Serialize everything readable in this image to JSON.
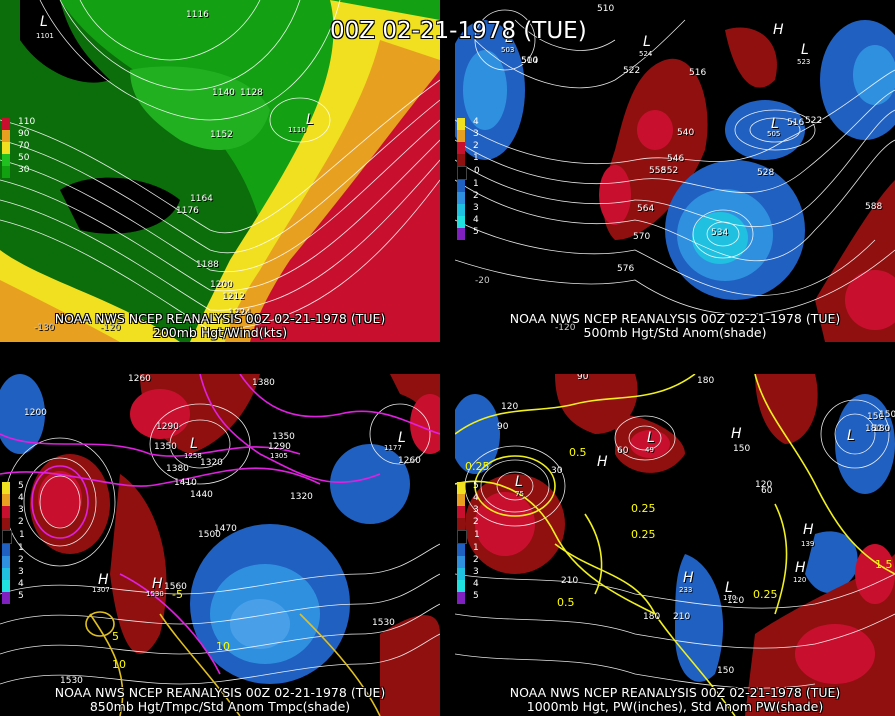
{
  "title": "00Z 02-21-1978 (TUE)",
  "panels": [
    {
      "caption_line1": "NOAA NWS NCEP REANALYSIS 00Z 02-21-1978 (TUE)",
      "caption_line2": "200mb Hgt/Wind(kts)",
      "colorbar": [
        {
          "label": "110",
          "color": "#c8102e"
        },
        {
          "label": "90",
          "color": "#e8a020"
        },
        {
          "label": "70",
          "color": "#f0e020"
        },
        {
          "label": "50",
          "color": "#20c020"
        },
        {
          "label": "30",
          "color": "#10a010"
        }
      ],
      "contour_labels": [
        "1116",
        "1140",
        "1128",
        "1152",
        "1164",
        "1176",
        "1188",
        "1200",
        "1212",
        "1224"
      ],
      "low_labels": [
        "L",
        "L"
      ],
      "low_values": [
        "1101",
        "1110"
      ],
      "lon_labels": [
        "-130",
        "-120"
      ]
    },
    {
      "caption_line1": "NOAA NWS NCEP REANALYSIS 00Z 02-21-1978 (TUE)",
      "caption_line2": "500mb Hgt/Std Anom(shade)",
      "colorbar": [
        {
          "label": "4",
          "color": "#f0e020"
        },
        {
          "label": "3",
          "color": "#e8a020"
        },
        {
          "label": "2",
          "color": "#c8102e"
        },
        {
          "label": "1",
          "color": "#901010"
        },
        {
          "label": "0",
          "color": "#000000"
        },
        {
          "label": "1",
          "color": "#2060c0"
        },
        {
          "label": "2",
          "color": "#3090e0"
        },
        {
          "label": "3",
          "color": "#20c0e0"
        },
        {
          "label": "4",
          "color": "#20e0e0"
        },
        {
          "label": "5",
          "color": "#8020c0"
        }
      ],
      "contour_labels": [
        "510",
        "522",
        "504",
        "516",
        "540",
        "546",
        "552",
        "558",
        "564",
        "570",
        "576",
        "528",
        "534",
        "516",
        "522",
        "588",
        "510"
      ],
      "low_labels": [
        "L",
        "L",
        "L",
        "L",
        "H",
        "L"
      ],
      "low_values": [
        "503",
        "524",
        "505",
        "523"
      ],
      "lon_labels": [
        "-20",
        "-120"
      ]
    },
    {
      "caption_line1": "NOAA NWS NCEP REANALYSIS 00Z 02-21-1978 (TUE)",
      "caption_line2": "850mb Hgt/Tmpc/Std Anom Tmpc(shade)",
      "colorbar": [
        {
          "label": "5",
          "color": "#f0e020"
        },
        {
          "label": "4",
          "color": "#e8a020"
        },
        {
          "label": "3",
          "color": "#c8102e"
        },
        {
          "label": "2",
          "color": "#901010"
        },
        {
          "label": "1",
          "color": "#000000"
        },
        {
          "label": "1",
          "color": "#2060c0"
        },
        {
          "label": "2",
          "color": "#3090e0"
        },
        {
          "label": "3",
          "color": "#20c0e0"
        },
        {
          "label": "4",
          "color": "#20e0e0"
        },
        {
          "label": "5",
          "color": "#8020c0"
        }
      ],
      "contour_labels": [
        "1260",
        "1410",
        "1380",
        "1290",
        "1350",
        "1320",
        "1200",
        "1380",
        "1410",
        "1440",
        "1260",
        "1290",
        "1350",
        "1320",
        "1470",
        "1500",
        "1560",
        "1530",
        "1530"
      ],
      "yellow_labels": [
        "5",
        "10",
        "10",
        "-5"
      ],
      "low_labels": [
        "L",
        "L",
        "L",
        "H",
        "H"
      ],
      "low_values": [
        "1177",
        "1258",
        "1305",
        "1307",
        "1530"
      ],
      "lon_labels": []
    },
    {
      "caption_line1": "NOAA NWS NCEP REANALYSIS 00Z 02-21-1978 (TUE)",
      "caption_line2": "1000mb Hgt, PW(inches), Std Anom PW(shade)",
      "colorbar": [
        {
          "label": "5",
          "color": "#f0e020"
        },
        {
          "label": "4",
          "color": "#e8a020"
        },
        {
          "label": "3",
          "color": "#c8102e"
        },
        {
          "label": "2",
          "color": "#901010"
        },
        {
          "label": "1",
          "color": "#000000"
        },
        {
          "label": "1",
          "color": "#2060c0"
        },
        {
          "label": "2",
          "color": "#3090e0"
        },
        {
          "label": "3",
          "color": "#20c0e0"
        },
        {
          "label": "4",
          "color": "#20e0e0"
        },
        {
          "label": "5",
          "color": "#8020c0"
        }
      ],
      "contour_labels": [
        "90",
        "180",
        "120",
        "90",
        "60",
        "30",
        "150",
        "150",
        "180",
        "120",
        "60",
        "210",
        "180",
        "210",
        "120",
        "150",
        "180",
        "150"
      ],
      "yellow_labels": [
        "0.25",
        "0.25",
        "0.5",
        "0.25",
        "0.5",
        "1.5",
        "0.25"
      ],
      "low_labels": [
        "L",
        "L",
        "L",
        "H",
        "H",
        "L",
        "H",
        "H",
        "H"
      ],
      "low_values": [
        "49",
        "75",
        "233",
        "170",
        "139",
        "120"
      ],
      "lon_labels": []
    }
  ]
}
